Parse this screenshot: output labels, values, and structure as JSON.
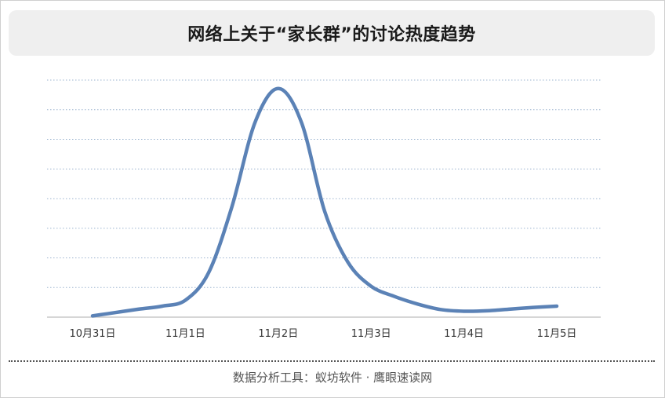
{
  "title": "网络上关于“家长群”的讨论热度趋势",
  "footer": "数据分析工具：蚁坊软件 · 鹰眼速读网",
  "colors": {
    "line": "#5b82b6",
    "grid": "#9bb3cf",
    "title_bg": "#efefef"
  },
  "chart_data": {
    "type": "line",
    "categories": [
      "10月31日",
      "11月1日",
      "11月2日",
      "11月3日",
      "11月4日",
      "11月5日"
    ],
    "x": [
      0,
      0.25,
      0.5,
      0.75,
      1,
      1.25,
      1.5,
      1.75,
      2,
      2.25,
      2.5,
      2.75,
      3,
      3.25,
      3.5,
      3.75,
      4,
      4.25,
      4.5,
      4.75,
      5
    ],
    "values": [
      0.3,
      1.1,
      1.9,
      2.6,
      4.0,
      10.5,
      26,
      46,
      54,
      46,
      25,
      13,
      7.3,
      4.9,
      3.1,
      1.8,
      1.4,
      1.5,
      1.9,
      2.3,
      2.6
    ],
    "title": "网络上关于“家长群”的讨论热度趋势",
    "xlabel": "",
    "ylabel": "",
    "ylim": [
      0,
      56
    ],
    "grid": true,
    "legend": "none"
  }
}
